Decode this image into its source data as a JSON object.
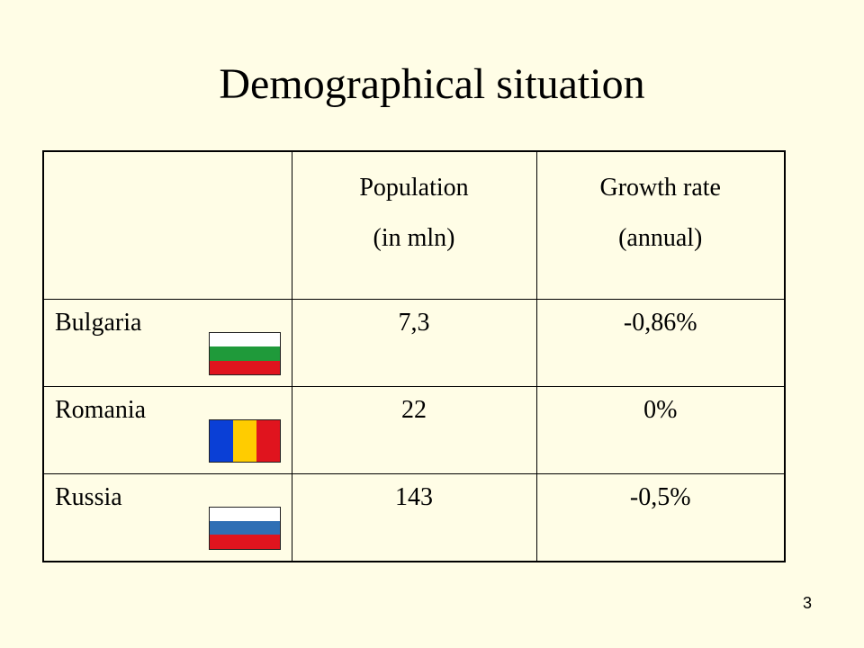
{
  "slide": {
    "title": "Demographical situation",
    "page_number": "3"
  },
  "table": {
    "headers": {
      "population_line1": "Population",
      "population_line2": "(in mln)",
      "growth_line1": "Growth rate",
      "growth_line2": "(annual)"
    },
    "rows": [
      {
        "country": "Bulgaria",
        "population": "7,3",
        "growth": "-0,86%",
        "flag": {
          "icon": "bulgaria-flag-icon",
          "orientation": "horizontal",
          "colors": [
            "#ffffff",
            "#1f9a3a",
            "#e0141e"
          ]
        }
      },
      {
        "country": "Romania",
        "population": "22",
        "growth": "0%",
        "flag": {
          "icon": "romania-flag-icon",
          "orientation": "vertical",
          "colors": [
            "#0a3fd6",
            "#ffcc00",
            "#e0141e"
          ]
        }
      },
      {
        "country": "Russia",
        "population": "143",
        "growth": "-0,5%",
        "flag": {
          "icon": "russia-flag-icon",
          "orientation": "horizontal",
          "colors": [
            "#ffffff",
            "#2f6fb5",
            "#e0141e"
          ]
        }
      }
    ]
  }
}
